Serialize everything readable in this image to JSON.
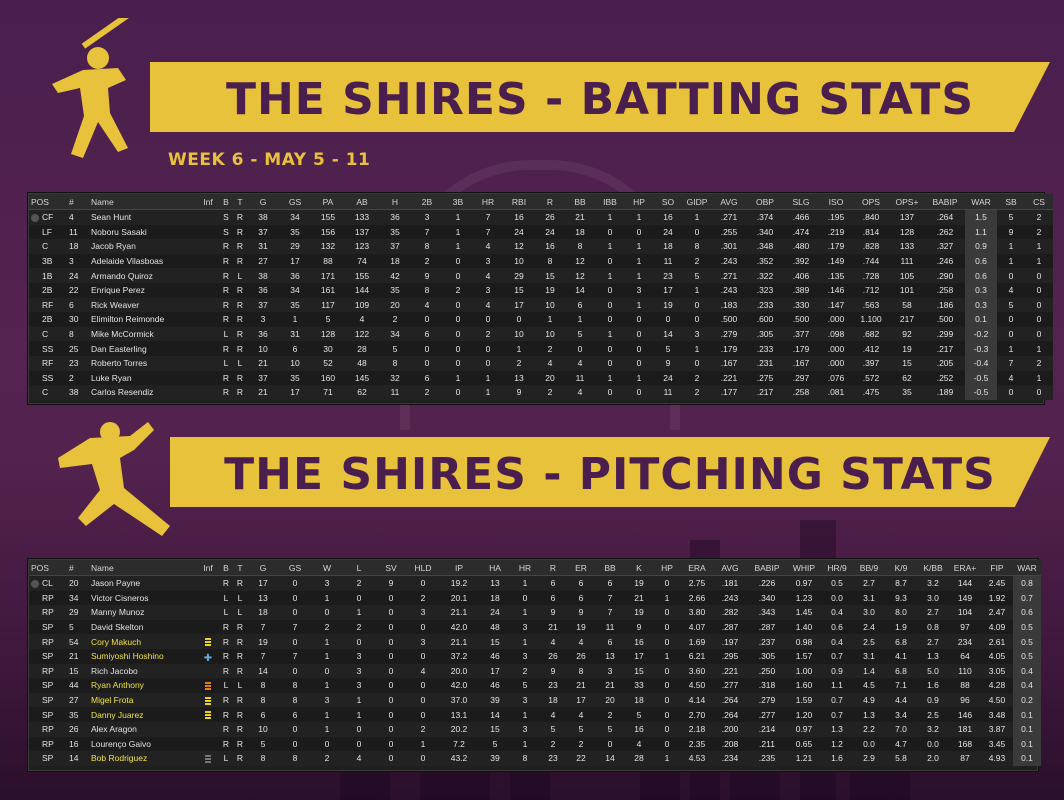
{
  "batting": {
    "title": "THE SHIRES - BATTING STATS",
    "week": "WEEK 6 - MAY 5 - 11",
    "columns": [
      "POS",
      "#",
      "Name",
      "Inf",
      "B",
      "T",
      "G",
      "GS",
      "PA",
      "AB",
      "H",
      "2B",
      "3B",
      "HR",
      "RBI",
      "R",
      "BB",
      "IBB",
      "HP",
      "SO",
      "GIDP",
      "AVG",
      "OBP",
      "SLG",
      "ISO",
      "OPS",
      "OPS+",
      "BABIP",
      "WAR",
      "SB",
      "CS"
    ],
    "rows": [
      [
        "CF",
        "4",
        "Sean Hunt",
        "",
        "S",
        "R",
        "38",
        "34",
        "155",
        "133",
        "36",
        "3",
        "1",
        "7",
        "16",
        "26",
        "21",
        "1",
        "1",
        "16",
        "1",
        ".271",
        ".374",
        ".466",
        ".195",
        ".840",
        "137",
        ".264",
        "1.5",
        "5",
        "2"
      ],
      [
        "LF",
        "11",
        "Noboru Sasaki",
        "",
        "S",
        "R",
        "37",
        "35",
        "156",
        "137",
        "35",
        "7",
        "1",
        "7",
        "24",
        "24",
        "18",
        "0",
        "0",
        "24",
        "0",
        ".255",
        ".340",
        ".474",
        ".219",
        ".814",
        "128",
        ".262",
        "1.1",
        "9",
        "2"
      ],
      [
        "C",
        "18",
        "Jacob Ryan",
        "",
        "R",
        "R",
        "31",
        "29",
        "132",
        "123",
        "37",
        "8",
        "1",
        "4",
        "12",
        "16",
        "8",
        "1",
        "1",
        "18",
        "8",
        ".301",
        ".348",
        ".480",
        ".179",
        ".828",
        "133",
        ".327",
        "0.9",
        "1",
        "1"
      ],
      [
        "3B",
        "3",
        "Adelaide Vilasboas",
        "",
        "R",
        "R",
        "27",
        "17",
        "88",
        "74",
        "18",
        "2",
        "0",
        "3",
        "10",
        "8",
        "12",
        "0",
        "1",
        "11",
        "2",
        ".243",
        ".352",
        ".392",
        ".149",
        ".744",
        "111",
        ".246",
        "0.6",
        "1",
        "1"
      ],
      [
        "1B",
        "24",
        "Armando Quiroz",
        "",
        "R",
        "L",
        "38",
        "36",
        "171",
        "155",
        "42",
        "9",
        "0",
        "4",
        "29",
        "15",
        "12",
        "1",
        "1",
        "23",
        "5",
        ".271",
        ".322",
        ".406",
        ".135",
        ".728",
        "105",
        ".290",
        "0.6",
        "0",
        "0"
      ],
      [
        "2B",
        "22",
        "Enrique Perez",
        "",
        "R",
        "R",
        "36",
        "34",
        "161",
        "144",
        "35",
        "8",
        "2",
        "3",
        "15",
        "19",
        "14",
        "0",
        "3",
        "17",
        "1",
        ".243",
        ".323",
        ".389",
        ".146",
        ".712",
        "101",
        ".258",
        "0.3",
        "4",
        "0"
      ],
      [
        "RF",
        "6",
        "Rick Weaver",
        "",
        "R",
        "R",
        "37",
        "35",
        "117",
        "109",
        "20",
        "4",
        "0",
        "4",
        "17",
        "10",
        "6",
        "0",
        "1",
        "19",
        "0",
        ".183",
        ".233",
        ".330",
        ".147",
        ".563",
        "58",
        ".186",
        "0.3",
        "5",
        "0"
      ],
      [
        "2B",
        "30",
        "Elimilton Reimonde",
        "",
        "R",
        "R",
        "3",
        "1",
        "5",
        "4",
        "2",
        "0",
        "0",
        "0",
        "0",
        "1",
        "1",
        "0",
        "0",
        "0",
        "0",
        ".500",
        ".600",
        ".500",
        ".000",
        "1.100",
        "217",
        ".500",
        "0.1",
        "0",
        "0"
      ],
      [
        "C",
        "8",
        "Mike McCormick",
        "",
        "L",
        "R",
        "36",
        "31",
        "128",
        "122",
        "34",
        "6",
        "0",
        "2",
        "10",
        "10",
        "5",
        "1",
        "0",
        "14",
        "3",
        ".279",
        ".305",
        ".377",
        ".098",
        ".682",
        "92",
        ".299",
        "-0.2",
        "0",
        "0"
      ],
      [
        "SS",
        "25",
        "Dan Easterling",
        "",
        "R",
        "R",
        "10",
        "6",
        "30",
        "28",
        "5",
        "0",
        "0",
        "0",
        "1",
        "2",
        "0",
        "0",
        "0",
        "5",
        "1",
        ".179",
        ".233",
        ".179",
        ".000",
        ".412",
        "19",
        ".217",
        "-0.3",
        "1",
        "1"
      ],
      [
        "RF",
        "23",
        "Roberto Torres",
        "",
        "L",
        "L",
        "21",
        "10",
        "52",
        "48",
        "8",
        "0",
        "0",
        "0",
        "2",
        "4",
        "4",
        "0",
        "0",
        "9",
        "0",
        ".167",
        ".231",
        ".167",
        ".000",
        ".397",
        "15",
        ".205",
        "-0.4",
        "7",
        "2"
      ],
      [
        "SS",
        "2",
        "Luke Ryan",
        "",
        "R",
        "R",
        "37",
        "35",
        "160",
        "145",
        "32",
        "6",
        "1",
        "1",
        "13",
        "20",
        "11",
        "1",
        "1",
        "24",
        "2",
        ".221",
        ".275",
        ".297",
        ".076",
        ".572",
        "62",
        ".252",
        "-0.5",
        "4",
        "1"
      ],
      [
        "C",
        "38",
        "Carlos Resendiz",
        "",
        "R",
        "R",
        "21",
        "17",
        "71",
        "62",
        "11",
        "2",
        "0",
        "1",
        "9",
        "2",
        "4",
        "0",
        "0",
        "11",
        "2",
        ".177",
        ".217",
        ".258",
        ".081",
        ".475",
        "35",
        ".189",
        "-0.5",
        "0",
        "0"
      ]
    ]
  },
  "pitching": {
    "title": "THE SHIRES - PITCHING STATS",
    "columns": [
      "POS",
      "#",
      "Name",
      "Inf",
      "B",
      "T",
      "G",
      "GS",
      "W",
      "L",
      "SV",
      "HLD",
      "IP",
      "HA",
      "HR",
      "R",
      "ER",
      "BB",
      "K",
      "HP",
      "ERA",
      "AVG",
      "BABIP",
      "WHIP",
      "HR/9",
      "BB/9",
      "K/9",
      "K/BB",
      "ERA+",
      "FIP",
      "WAR"
    ],
    "rows": [
      [
        "CL",
        "20",
        "Jason Payne",
        "",
        "R",
        "R",
        "17",
        "0",
        "3",
        "2",
        "9",
        "0",
        "19.2",
        "13",
        "1",
        "6",
        "6",
        "6",
        "19",
        "0",
        "2.75",
        ".181",
        ".226",
        "0.97",
        "0.5",
        "2.7",
        "8.7",
        "3.2",
        "144",
        "2.45",
        "0.8"
      ],
      [
        "RP",
        "34",
        "Victor Cisneros",
        "",
        "L",
        "L",
        "13",
        "0",
        "1",
        "0",
        "0",
        "2",
        "20.1",
        "18",
        "0",
        "6",
        "6",
        "7",
        "21",
        "1",
        "2.66",
        ".243",
        ".340",
        "1.23",
        "0.0",
        "3.1",
        "9.3",
        "3.0",
        "149",
        "1.92",
        "0.7"
      ],
      [
        "RP",
        "29",
        "Manny Munoz",
        "",
        "L",
        "L",
        "18",
        "0",
        "0",
        "1",
        "0",
        "3",
        "21.1",
        "24",
        "1",
        "9",
        "9",
        "7",
        "19",
        "0",
        "3.80",
        ".282",
        ".343",
        "1.45",
        "0.4",
        "3.0",
        "8.0",
        "2.7",
        "104",
        "2.47",
        "0.6"
      ],
      [
        "SP",
        "5",
        "David Skelton",
        "",
        "R",
        "R",
        "7",
        "7",
        "2",
        "2",
        "0",
        "0",
        "42.0",
        "48",
        "3",
        "21",
        "19",
        "11",
        "9",
        "0",
        "4.07",
        ".287",
        ".287",
        "1.40",
        "0.6",
        "2.4",
        "1.9",
        "0.8",
        "97",
        "4.09",
        "0.5"
      ],
      [
        "RP",
        "54",
        "Cory Makuch",
        "yellow",
        "R",
        "R",
        "19",
        "0",
        "1",
        "0",
        "0",
        "3",
        "21.1",
        "15",
        "1",
        "4",
        "4",
        "6",
        "16",
        "0",
        "1.69",
        ".197",
        ".237",
        "0.98",
        "0.4",
        "2.5",
        "6.8",
        "2.7",
        "234",
        "2.61",
        "0.5"
      ],
      [
        "SP",
        "21",
        "Sumiyoshi Hoshino",
        "cross",
        "R",
        "R",
        "7",
        "7",
        "1",
        "3",
        "0",
        "0",
        "37.2",
        "46",
        "3",
        "26",
        "26",
        "13",
        "17",
        "1",
        "6.21",
        ".295",
        ".305",
        "1.57",
        "0.7",
        "3.1",
        "4.1",
        "1.3",
        "64",
        "4.05",
        "0.5"
      ],
      [
        "RP",
        "15",
        "Rich Jacobo",
        "",
        "R",
        "R",
        "14",
        "0",
        "0",
        "3",
        "0",
        "4",
        "20.0",
        "17",
        "2",
        "9",
        "8",
        "3",
        "15",
        "0",
        "3.60",
        ".221",
        ".250",
        "1.00",
        "0.9",
        "1.4",
        "6.8",
        "5.0",
        "110",
        "3.05",
        "0.4"
      ],
      [
        "SP",
        "44",
        "Ryan Anthony",
        "orange",
        "L",
        "L",
        "8",
        "8",
        "1",
        "3",
        "0",
        "0",
        "42.0",
        "46",
        "5",
        "23",
        "21",
        "21",
        "33",
        "0",
        "4.50",
        ".277",
        ".318",
        "1.60",
        "1.1",
        "4.5",
        "7.1",
        "1.6",
        "88",
        "4.28",
        "0.4"
      ],
      [
        "SP",
        "27",
        "Migel Frota",
        "yellow",
        "R",
        "R",
        "8",
        "8",
        "3",
        "1",
        "0",
        "0",
        "37.0",
        "39",
        "3",
        "18",
        "17",
        "20",
        "18",
        "0",
        "4.14",
        ".264",
        ".279",
        "1.59",
        "0.7",
        "4.9",
        "4.4",
        "0.9",
        "96",
        "4.50",
        "0.2"
      ],
      [
        "SP",
        "35",
        "Danny Juarez",
        "yellow",
        "R",
        "R",
        "6",
        "6",
        "1",
        "1",
        "0",
        "0",
        "13.1",
        "14",
        "1",
        "4",
        "4",
        "2",
        "5",
        "0",
        "2.70",
        ".264",
        ".277",
        "1.20",
        "0.7",
        "1.3",
        "3.4",
        "2.5",
        "146",
        "3.48",
        "0.1"
      ],
      [
        "RP",
        "26",
        "Alex Aragon",
        "",
        "R",
        "R",
        "10",
        "0",
        "1",
        "0",
        "0",
        "2",
        "20.2",
        "15",
        "3",
        "5",
        "5",
        "5",
        "16",
        "0",
        "2.18",
        ".200",
        ".214",
        "0.97",
        "1.3",
        "2.2",
        "7.0",
        "3.2",
        "181",
        "3.87",
        "0.1"
      ],
      [
        "RP",
        "16",
        "Lourenço Gaivo",
        "",
        "R",
        "R",
        "5",
        "0",
        "0",
        "0",
        "0",
        "1",
        "7.2",
        "5",
        "1",
        "2",
        "2",
        "0",
        "4",
        "0",
        "2.35",
        ".208",
        ".211",
        "0.65",
        "1.2",
        "0.0",
        "4.7",
        "0.0",
        "168",
        "3.45",
        "0.1"
      ],
      [
        "SP",
        "14",
        "Bob Rodriguez",
        "gray",
        "L",
        "R",
        "8",
        "8",
        "2",
        "4",
        "0",
        "0",
        "43.2",
        "39",
        "8",
        "23",
        "22",
        "14",
        "28",
        "1",
        "4.53",
        ".234",
        ".235",
        "1.21",
        "1.6",
        "2.9",
        "5.8",
        "2.0",
        "87",
        "4.93",
        "0.1"
      ]
    ]
  },
  "colors": {
    "accent": "#e8c23a",
    "background": "#4a1f4e",
    "highlight_name": "#f0e341"
  }
}
